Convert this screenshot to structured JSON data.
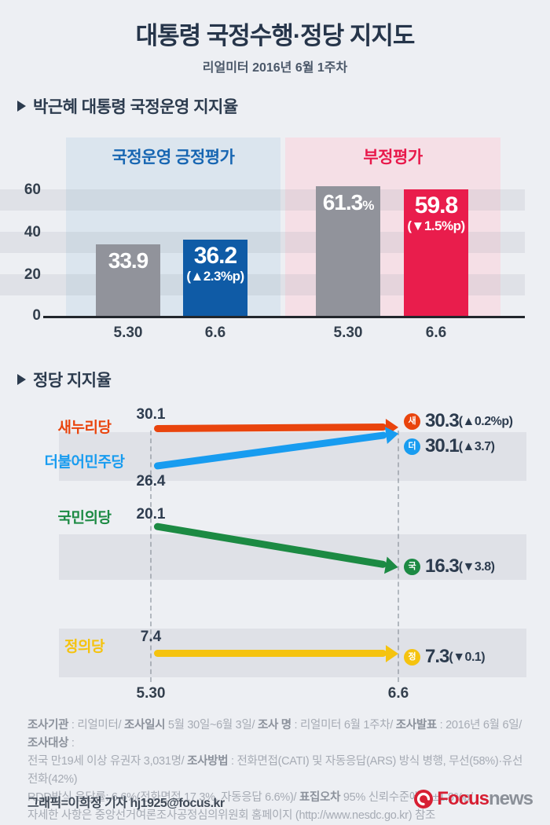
{
  "header": {
    "title": "대통령 국정수행·정당 지지도",
    "subtitle": "리얼미터 2016년 6월 1주차"
  },
  "approval_section": {
    "heading": "박근혜 대통령 국정운영 지지율",
    "positive_label": "국정운영 긍정평가",
    "negative_label": "부정평가",
    "positive_color": "#1766b2",
    "negative_color": "#e8194b",
    "y_ticks": [
      "60",
      "40",
      "20",
      "0"
    ],
    "bars": [
      {
        "date": "5.30",
        "value": "33.9",
        "suffix": "",
        "change": "",
        "color": "#91939b"
      },
      {
        "date": "6.6",
        "value": "36.2",
        "suffix": "",
        "change": "(▲2.3%p)",
        "color": "#0f5ba6"
      },
      {
        "date": "5.30",
        "value": "61.3",
        "suffix": "%",
        "change": "",
        "color": "#91939b"
      },
      {
        "date": "6.6",
        "value": "59.8",
        "suffix": "",
        "change": "(▼1.5%p)",
        "color": "#e91d4c"
      }
    ]
  },
  "party_section": {
    "heading": "정당 지지율",
    "x_labels": [
      "5.30",
      "6.6"
    ],
    "parties": [
      {
        "name": "새누리당",
        "color": "#e9440d",
        "start": "30.1",
        "badge": "새",
        "end_value": "30.3",
        "end_change": "(▲0.2%p)"
      },
      {
        "name": "더불어민주당",
        "color": "#189cf0",
        "start": "26.4",
        "badge": "더",
        "end_value": "30.1",
        "end_change": "(▲3.7)"
      },
      {
        "name": "국민의당",
        "color": "#1c8a43",
        "start": "20.1",
        "badge": "국",
        "end_value": "16.3",
        "end_change": "(▼3.8)"
      },
      {
        "name": "정의당",
        "color": "#f5c30f",
        "start": "7.4",
        "badge": "정",
        "end_value": "7.3",
        "end_change": "(▼0.1)"
      }
    ]
  },
  "chart_data": [
    {
      "type": "bar",
      "title": "박근혜 대통령 국정운영 지지율",
      "categories": [
        "5.30",
        "6.6"
      ],
      "series": [
        {
          "name": "국정운영 긍정평가",
          "values": [
            33.9,
            36.2
          ],
          "change_pp": 2.3
        },
        {
          "name": "부정평가",
          "values": [
            61.3,
            59.8
          ],
          "change_pp": -1.5
        }
      ],
      "ylabel": "",
      "xlabel": "",
      "ylim": [
        0,
        70
      ],
      "yticks": [
        0,
        20,
        40,
        60
      ],
      "grid": "horizontal-bands",
      "legend_position": "panel-headers"
    },
    {
      "type": "line",
      "title": "정당 지지율",
      "x": [
        "5.30",
        "6.6"
      ],
      "series": [
        {
          "name": "새누리당",
          "values": [
            30.1,
            30.3
          ],
          "change_pp": 0.2
        },
        {
          "name": "더불어민주당",
          "values": [
            26.4,
            30.1
          ],
          "change_pp": 3.7
        },
        {
          "name": "국민의당",
          "values": [
            20.1,
            16.3
          ],
          "change_pp": -3.8
        },
        {
          "name": "정의당",
          "values": [
            7.4,
            7.3
          ],
          "change_pp": -0.1
        }
      ],
      "legend_position": "left-of-lines",
      "grid": "off"
    }
  ],
  "footer": {
    "lines": [
      [
        {
          "t": "조사기관",
          "b": true
        },
        {
          "t": " : 리얼미터/ ",
          "b": false
        },
        {
          "t": "조사일시",
          "b": true
        },
        {
          "t": " 5월 30일~6월 3일/ ",
          "b": false
        },
        {
          "t": "조사 명",
          "b": true
        },
        {
          "t": " : 리얼미터 6월 1주차/ ",
          "b": false
        },
        {
          "t": "조사발표",
          "b": true
        },
        {
          "t": " : 2016년 6월 6일/ ",
          "b": false
        },
        {
          "t": "조사대상",
          "b": true
        },
        {
          "t": " :",
          "b": false
        }
      ],
      [
        {
          "t": "전국 만19세 이상 유권자  3,031명/ ",
          "b": false
        },
        {
          "t": "조사방법",
          "b": true
        },
        {
          "t": " : 전화면접(CATI) 및 자동응답(ARS) 방식 병행, 무선(58%)·유선전화(42%)",
          "b": false
        }
      ],
      [
        {
          "t": "RDD방식 응답률: 6.6%(전화면접 17.3%, 자동응답 6.6%)/ ",
          "b": false
        },
        {
          "t": "표집오차",
          "b": true
        },
        {
          "t": " 95% 신뢰수준에서 ±1.8%p/",
          "b": false
        }
      ],
      [
        {
          "t": "자세한 사항은 중앙선거여론조사공정심의위원회 홈페이지 (http://www.nesdc.go.kr) 참조",
          "b": false
        }
      ]
    ],
    "byline": "그래픽=이희정 기자 hj1925@focus.kr",
    "logo": {
      "word1": "Focus",
      "word2": "news",
      "red": "#d71f33",
      "gray": "#8b9098"
    }
  }
}
